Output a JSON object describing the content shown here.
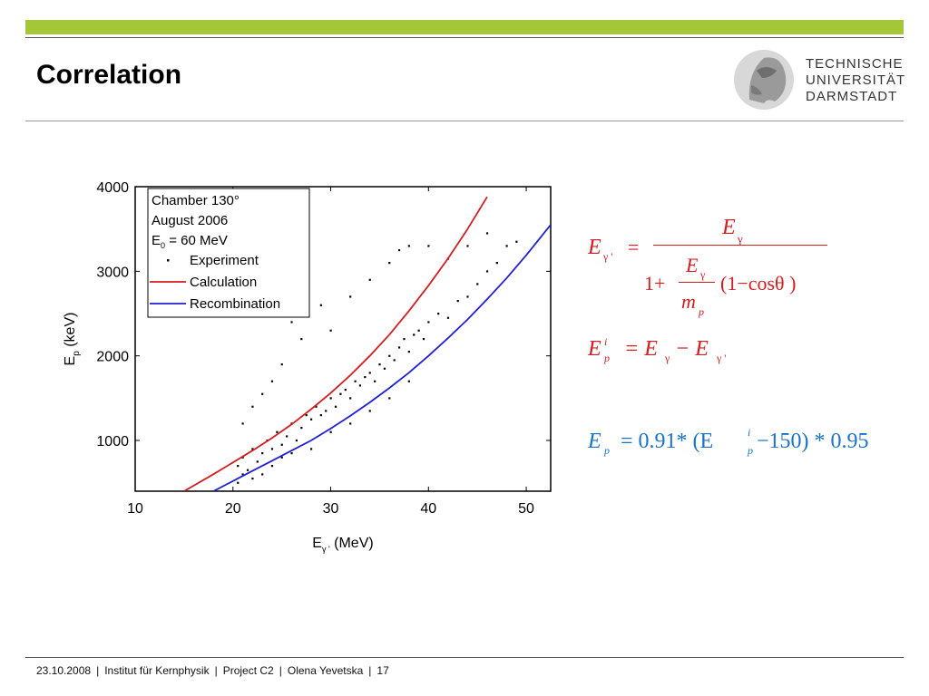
{
  "slide": {
    "title": "Correlation",
    "logo_lines": [
      "TECHNISCHE",
      "UNIVERSITÄT",
      "DARMSTADT"
    ],
    "footer": {
      "date": "23.10.2008",
      "institute": "Institut für Kernphysik",
      "project": "Project C2",
      "author": "Olena Yevetska",
      "page": "17"
    }
  },
  "colors": {
    "accent_green": "#a4c639",
    "calculation": "#d21e1e",
    "recombination": "#1f1fd6",
    "formula_blue": "#1a73c8"
  },
  "legend": {
    "lines": [
      "Chamber 130°",
      "August 2006"
    ],
    "e0_label": "E",
    "e0_sub": "0",
    "e0_value": " = 60 MeV",
    "entries": [
      "Experiment",
      "Calculation",
      "Recombination"
    ]
  },
  "equations": {
    "eq1_lhs": "E",
    "eq1_lhs_sub": "γ '",
    "eq1_eq": "=",
    "eq1_num": "E",
    "eq1_num_sub": "γ",
    "eq1_den_prefix": "1+",
    "eq1_inner_num": "E",
    "eq1_inner_num_sub": "γ",
    "eq1_inner_den": "m",
    "eq1_inner_den_sub": "p",
    "eq1_den_suffix": "(1−cosθ )",
    "eq2_lhs": "E",
    "eq2_lhs_sup": "i",
    "eq2_lhs_sub": "p",
    "eq2_rhs": "= E",
    "eq2_rhs_sub1": "γ",
    "eq2_minus": " − E",
    "eq2_rhs_sub2": "γ '",
    "eq3_lhs": "E",
    "eq3_lhs_sub": "p",
    "eq3_a": "= 0.91* (E",
    "eq3_sup": "i",
    "eq3_sub": "p",
    "eq3_b": " −150) * 0.95"
  },
  "chart_data": {
    "type": "scatter",
    "x_label_base": "E",
    "x_label_sub": "γ '",
    "x_label_unit": " (MeV)",
    "y_label_base": "E",
    "y_label_sub": "p",
    "y_label_unit": " (keV)",
    "xlim": [
      10,
      52.5
    ],
    "ylim": [
      400,
      4000
    ],
    "x_ticks": [
      10,
      20,
      30,
      40,
      50
    ],
    "y_ticks": [
      1000,
      2000,
      3000,
      4000
    ],
    "grid": false,
    "legend_position": "top-left",
    "series": [
      {
        "name": "Experiment",
        "type": "scatter",
        "description_points": [
          [
            20.5,
            700
          ],
          [
            21,
            800
          ],
          [
            21.5,
            650
          ],
          [
            22,
            900
          ],
          [
            22.5,
            750
          ],
          [
            23,
            850
          ],
          [
            23.5,
            1000
          ],
          [
            24,
            900
          ],
          [
            24.5,
            1100
          ],
          [
            25,
            950
          ],
          [
            25.5,
            1050
          ],
          [
            26,
            1200
          ],
          [
            26.5,
            1000
          ],
          [
            27,
            1150
          ],
          [
            27.5,
            1300
          ],
          [
            28,
            1250
          ],
          [
            28.5,
            1400
          ],
          [
            29,
            1300
          ],
          [
            29.5,
            1350
          ],
          [
            30,
            1500
          ],
          [
            30.5,
            1400
          ],
          [
            31,
            1550
          ],
          [
            31.5,
            1600
          ],
          [
            32,
            1500
          ],
          [
            32.5,
            1700
          ],
          [
            33,
            1650
          ],
          [
            33.5,
            1750
          ],
          [
            34,
            1800
          ],
          [
            34.5,
            1700
          ],
          [
            35,
            1900
          ],
          [
            35.5,
            1850
          ],
          [
            36,
            2000
          ],
          [
            36.5,
            1950
          ],
          [
            37,
            2100
          ],
          [
            37.5,
            2200
          ],
          [
            38,
            2050
          ],
          [
            38.5,
            2250
          ],
          [
            39,
            2300
          ],
          [
            39.5,
            2200
          ],
          [
            40,
            2400
          ],
          [
            41,
            2500
          ],
          [
            42,
            2450
          ],
          [
            43,
            2650
          ],
          [
            44,
            2700
          ],
          [
            45,
            2850
          ],
          [
            46,
            3000
          ],
          [
            47,
            3100
          ],
          [
            48,
            3300
          ],
          [
            49,
            3350
          ],
          [
            21,
            1200
          ],
          [
            22,
            1400
          ],
          [
            23,
            1550
          ],
          [
            24,
            1700
          ],
          [
            26,
            2400
          ],
          [
            25,
            1900
          ],
          [
            27,
            2200
          ],
          [
            29,
            2600
          ],
          [
            30,
            2300
          ],
          [
            32,
            2700
          ],
          [
            34,
            2900
          ],
          [
            36,
            3100
          ],
          [
            38,
            3300
          ],
          [
            37,
            3250
          ],
          [
            40,
            3300
          ],
          [
            42,
            3150
          ],
          [
            44,
            3300
          ],
          [
            46,
            3450
          ],
          [
            20.5,
            500
          ],
          [
            21,
            600
          ],
          [
            22,
            550
          ],
          [
            23,
            600
          ],
          [
            24,
            700
          ],
          [
            25,
            800
          ],
          [
            26,
            850
          ],
          [
            28,
            900
          ],
          [
            30,
            1100
          ],
          [
            32,
            1200
          ],
          [
            34,
            1350
          ],
          [
            36,
            1500
          ],
          [
            38,
            1700
          ]
        ]
      },
      {
        "name": "Calculation",
        "type": "line",
        "x": [
          15,
          18,
          20,
          22,
          24,
          26,
          28,
          30,
          32,
          34,
          36,
          38,
          40,
          42,
          44,
          46
        ],
        "y": [
          400,
          600,
          740,
          880,
          1030,
          1190,
          1370,
          1560,
          1770,
          2000,
          2250,
          2530,
          2830,
          3150,
          3500,
          3880
        ]
      },
      {
        "name": "Recombination",
        "type": "line",
        "x": [
          18,
          20,
          22,
          24,
          26,
          28,
          30,
          32,
          34,
          36,
          38,
          40,
          42,
          44,
          46,
          48,
          50,
          52.5
        ],
        "y": [
          400,
          520,
          640,
          760,
          880,
          1000,
          1140,
          1290,
          1450,
          1620,
          1800,
          2000,
          2210,
          2430,
          2670,
          2920,
          3190,
          3550
        ]
      }
    ]
  }
}
